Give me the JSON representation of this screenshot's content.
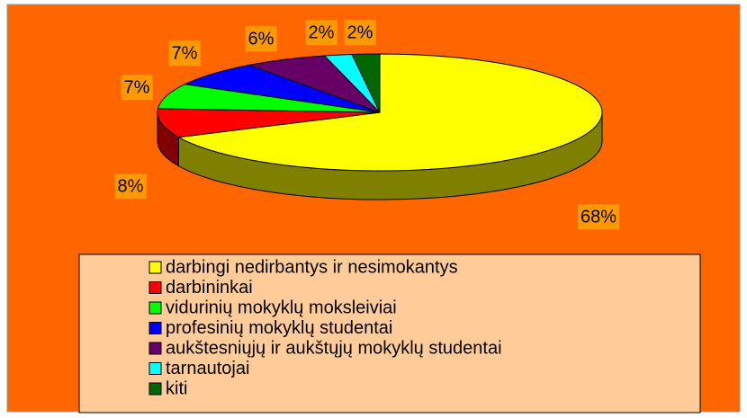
{
  "chart_data": {
    "type": "pie",
    "categories": [
      "darbingi nedirbantys ir nesimokantys",
      "darbininkai",
      "vidurinių mokyklų moksleiviai",
      "profesinių mokyklų studentai",
      "aukštesniųjų ir aukštųjų mokyklų studentai",
      "tarnautojai",
      "kiti"
    ],
    "values": [
      68,
      8,
      7,
      7,
      6,
      2,
      2
    ],
    "value_labels": [
      "68%",
      "8%",
      "7%",
      "7%",
      "6%",
      "2%",
      "2%"
    ],
    "colors": [
      "#ffff00",
      "#ff0000",
      "#00ff00",
      "#0000ff",
      "#660066",
      "#00ffff",
      "#006600"
    ],
    "legend": "bottom"
  }
}
